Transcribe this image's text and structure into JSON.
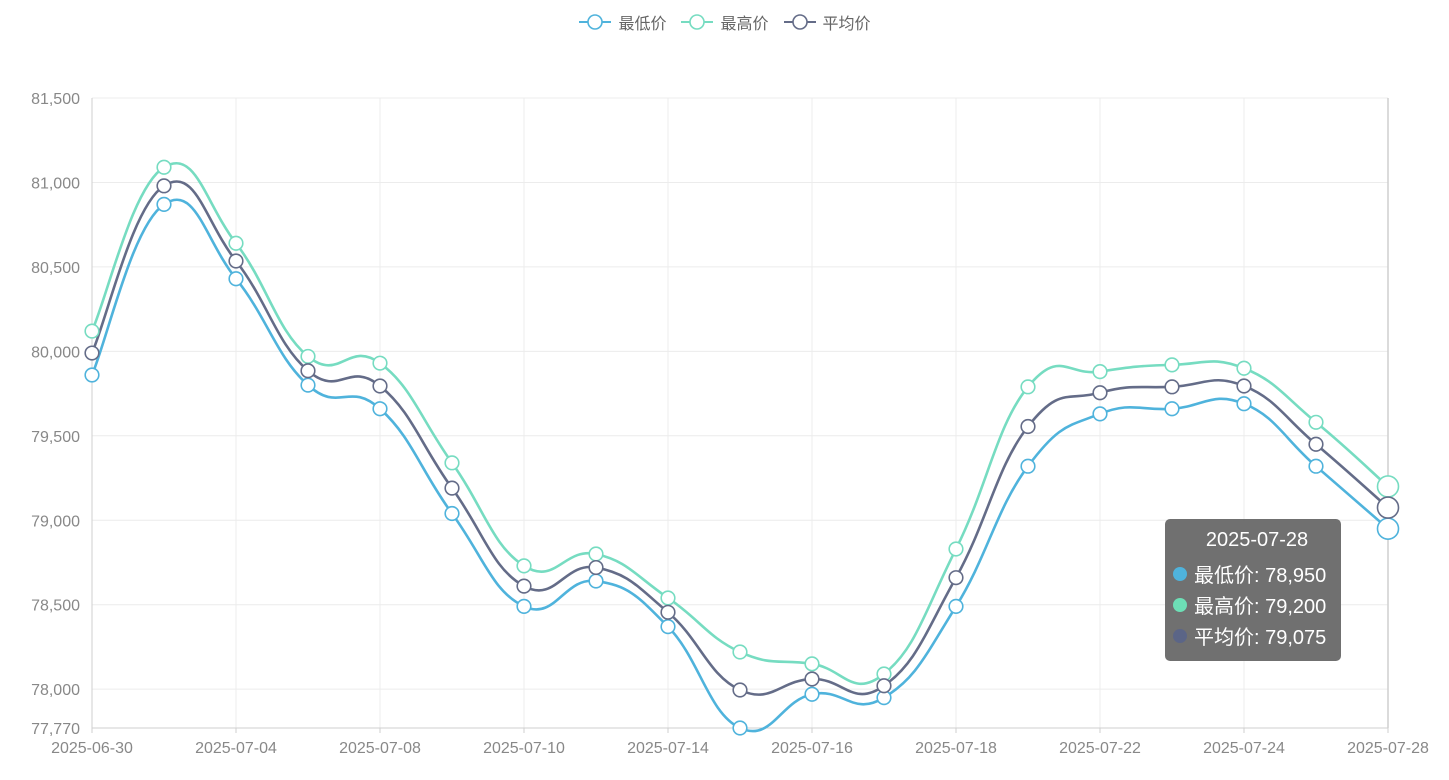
{
  "legend": [
    {
      "label": "最低价",
      "color": "#4fb3dc"
    },
    {
      "label": "最高价",
      "color": "#76dcc1"
    },
    {
      "label": "平均价",
      "color": "#646c88"
    }
  ],
  "tooltip": {
    "title": "2025-07-28",
    "rows": [
      {
        "text": "最低价: 78,950",
        "color": "#4fb3dc"
      },
      {
        "text": "最高价: 79,200",
        "color": "#6ddfb6"
      },
      {
        "text": "平均价: 79,075",
        "color": "#5b6587"
      }
    ]
  },
  "chart_data": {
    "type": "line",
    "x_tick_labels": [
      "2025-06-30",
      "2025-07-04",
      "2025-07-08",
      "2025-07-10",
      "2025-07-14",
      "2025-07-16",
      "2025-07-18",
      "2025-07-22",
      "2025-07-24",
      "2025-07-28"
    ],
    "y_ticks": [
      77770,
      78000,
      78500,
      79000,
      79500,
      80000,
      80500,
      81000,
      81500
    ],
    "y_tick_labels": [
      "77,770",
      "78,000",
      "78,500",
      "79,000",
      "79,500",
      "80,000",
      "80,500",
      "81,000",
      "81,500"
    ],
    "ylim": [
      77770,
      81500
    ],
    "grid": true,
    "legend_position": "top-center",
    "points_per_series": 19,
    "series": [
      {
        "name": "最低价",
        "color": "#4fb3dc",
        "values": [
          79860,
          80870,
          80430,
          79800,
          79660,
          79040,
          78490,
          78640,
          78370,
          77770,
          77970,
          77950,
          78490,
          79320,
          79630,
          79660,
          79690,
          79320,
          78950
        ]
      },
      {
        "name": "最高价",
        "color": "#76dcc1",
        "values": [
          80120,
          81090,
          80640,
          79970,
          79930,
          79340,
          78730,
          78800,
          78540,
          78220,
          78150,
          78090,
          78830,
          79790,
          79880,
          79920,
          79900,
          79580,
          79200
        ]
      },
      {
        "name": "平均价",
        "color": "#646c88",
        "values": [
          79990,
          80980,
          80535,
          79885,
          79795,
          79190,
          78610,
          78720,
          78455,
          77995,
          78060,
          78020,
          78660,
          79555,
          79755,
          79790,
          79795,
          79450,
          79075
        ]
      }
    ]
  }
}
